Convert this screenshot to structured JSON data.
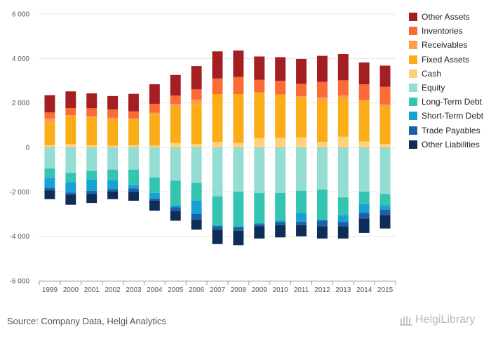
{
  "chart_data": {
    "type": "bar",
    "stacked": true,
    "categories": [
      "1999",
      "2000",
      "2001",
      "2002",
      "2003",
      "2004",
      "2005",
      "2006",
      "2007",
      "2008",
      "2009",
      "2010",
      "2011",
      "2012",
      "2013",
      "2014",
      "2015"
    ],
    "ylim": [
      -6000,
      6000
    ],
    "yticks": [
      {
        "value": 6000,
        "label": "6 000"
      },
      {
        "value": 4000,
        "label": "4 000"
      },
      {
        "value": 2000,
        "label": "2 000"
      },
      {
        "value": 0,
        "label": "0"
      },
      {
        "value": -2000,
        "label": "-2 000"
      },
      {
        "value": -4000,
        "label": "-4 000"
      },
      {
        "value": -6000,
        "label": "-6 000"
      }
    ],
    "grid": true,
    "legend_position": "right",
    "positive_series": [
      {
        "name": "Cash",
        "color": "#fdd27d",
        "values": [
          100,
          150,
          100,
          80,
          100,
          80,
          200,
          150,
          250,
          200,
          420,
          430,
          450,
          250,
          480,
          270,
          150
        ]
      },
      {
        "name": "Fixed Assets",
        "color": "#fbad17",
        "values": [
          1000,
          1250,
          1250,
          1150,
          1150,
          1380,
          1650,
          1800,
          2150,
          2200,
          2000,
          1950,
          1800,
          1800,
          1680,
          1800,
          1650
        ]
      },
      {
        "name": "Receivables",
        "color": "#fb9f4a",
        "values": [
          200,
          50,
          50,
          100,
          50,
          100,
          100,
          200,
          0,
          0,
          50,
          0,
          50,
          200,
          180,
          50,
          130
        ]
      },
      {
        "name": "Inventories",
        "color": "#fa6b36",
        "values": [
          270,
          320,
          360,
          380,
          320,
          400,
          380,
          460,
          700,
          770,
          570,
          620,
          560,
          700,
          680,
          720,
          800
        ]
      },
      {
        "name": "Other Assets",
        "color": "#a31f21",
        "values": [
          780,
          750,
          670,
          600,
          790,
          880,
          930,
          1050,
          1220,
          1190,
          1050,
          1060,
          1120,
          1170,
          1180,
          980,
          950
        ]
      }
    ],
    "negative_series": [
      {
        "name": "Equity",
        "color": "#93ddd3",
        "values": [
          -950,
          -1150,
          -1050,
          -1000,
          -1000,
          -1350,
          -1500,
          -1600,
          -2200,
          -2000,
          -2050,
          -2050,
          -1950,
          -1900,
          -2250,
          -2000,
          -2100
        ]
      },
      {
        "name": "Long-Term Debt",
        "color": "#33c5b2",
        "values": [
          -430,
          -430,
          -400,
          -480,
          -700,
          -700,
          -1100,
          -800,
          -1300,
          -1550,
          -1350,
          -1250,
          -1000,
          -1350,
          -800,
          -550,
          -500
        ]
      },
      {
        "name": "Short-Term Debt",
        "color": "#16a2d2",
        "values": [
          -450,
          -450,
          -500,
          -400,
          -150,
          -250,
          -100,
          -600,
          -50,
          -50,
          -50,
          -50,
          -400,
          -50,
          -300,
          -400,
          -200
        ]
      },
      {
        "name": "Trade Payables",
        "color": "#1d5fa9",
        "values": [
          -100,
          -100,
          -150,
          -100,
          -150,
          -100,
          -150,
          -250,
          -150,
          -150,
          -100,
          -150,
          -150,
          -250,
          -200,
          -250,
          -250
        ]
      },
      {
        "name": "Other Liabilities",
        "color": "#0e2d57",
        "values": [
          -400,
          -450,
          -400,
          -350,
          -400,
          -450,
          -450,
          -450,
          -650,
          -650,
          -550,
          -550,
          -500,
          -550,
          -550,
          -650,
          -600
        ]
      }
    ],
    "legend_order": [
      "Other Assets",
      "Inventories",
      "Receivables",
      "Fixed Assets",
      "Cash",
      "Equity",
      "Long-Term Debt",
      "Short-Term Debt",
      "Trade Payables",
      "Other Liabilities"
    ]
  },
  "footer": {
    "source": "Source: Company Data, Helgi Analytics",
    "logo": "HelgiLibrary"
  }
}
